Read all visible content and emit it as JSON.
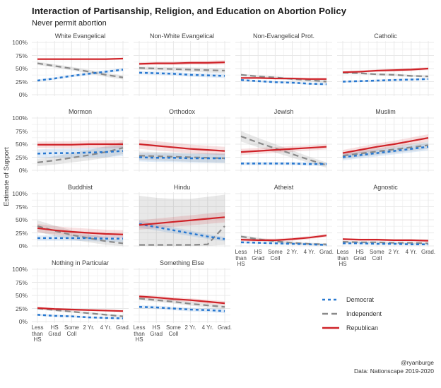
{
  "title": "Interaction of Partisanship, Religion, and Education on Abortion Policy",
  "subtitle": "Never permit abortion",
  "y_axis_label": "Estimate of Support",
  "caption": {
    "line1": "@ryanburge",
    "line2": "Data: Nationscape 2019-2020"
  },
  "legend": {
    "items": [
      {
        "label": "Democrat",
        "color": "#2878d0",
        "style": "dashed-short"
      },
      {
        "label": "Independent",
        "color": "#8a8a8a",
        "style": "dashed-long"
      },
      {
        "label": "Republican",
        "color": "#cf2228",
        "style": "solid"
      }
    ]
  },
  "chart_data": {
    "type": "line",
    "x_axis": "Education",
    "categories": [
      "Less than HS",
      "HS Grad",
      "Some Coll",
      "2 Yr.",
      "4 Yr.",
      "Grad."
    ],
    "x_tick_display": [
      "Less\nthan\nHS",
      "HS\nGrad",
      "Some\nColl",
      "2 Yr.",
      "4 Yr.",
      "Grad."
    ],
    "y_ticks": [
      0,
      25,
      50,
      75,
      100
    ],
    "y_tick_labels": [
      "0%",
      "25%",
      "50%",
      "75%",
      "100%"
    ],
    "ylim": [
      0,
      100
    ],
    "grid": true,
    "legend_position": "bottom-right",
    "facets": [
      {
        "title": "White Evangelical",
        "row": 1,
        "show_x_axis": false,
        "series": [
          {
            "name": "Democrat",
            "values": [
              27,
              31,
              36,
              40,
              44,
              48
            ],
            "ci": [
              2,
              3
            ]
          },
          {
            "name": "Independent",
            "values": [
              60,
              55,
              50,
              44,
              38,
              33
            ],
            "ci": [
              3,
              4
            ]
          },
          {
            "name": "Republican",
            "values": [
              68,
              68,
              68,
              68,
              68,
              69
            ],
            "ci": [
              2,
              2
            ]
          }
        ]
      },
      {
        "title": "Non-White Evangelical",
        "row": 1,
        "show_x_axis": false,
        "series": [
          {
            "name": "Democrat",
            "values": [
              42,
              41,
              40,
              38,
              37,
              36
            ],
            "ci": [
              3,
              4
            ]
          },
          {
            "name": "Independent",
            "values": [
              51,
              50,
              49,
              48,
              47,
              46
            ],
            "ci": [
              3,
              5
            ]
          },
          {
            "name": "Republican",
            "values": [
              59,
              60,
              60,
              61,
              61,
              62
            ],
            "ci": [
              3,
              4
            ]
          }
        ]
      },
      {
        "title": "Non-Evangelical Prot.",
        "row": 1,
        "show_x_axis": false,
        "series": [
          {
            "name": "Democrat",
            "values": [
              28,
              26,
              24,
              23,
              21,
              20
            ],
            "ci": [
              2,
              2
            ]
          },
          {
            "name": "Independent",
            "values": [
              38,
              35,
              33,
              30,
              28,
              25
            ],
            "ci": [
              2,
              3
            ]
          },
          {
            "name": "Republican",
            "values": [
              32,
              32,
              31,
              31,
              30,
              30
            ],
            "ci": [
              2,
              2
            ]
          }
        ]
      },
      {
        "title": "Catholic",
        "row": 1,
        "show_x_axis": false,
        "series": [
          {
            "name": "Democrat",
            "values": [
              25,
              26,
              27,
              28,
              29,
              30
            ],
            "ci": [
              2,
              2
            ]
          },
          {
            "name": "Independent",
            "values": [
              42,
              41,
              39,
              38,
              36,
              35
            ],
            "ci": [
              2,
              2
            ]
          },
          {
            "name": "Republican",
            "values": [
              43,
              44,
              46,
              47,
              48,
              50
            ],
            "ci": [
              2,
              3
            ]
          }
        ]
      },
      {
        "title": "Mormon",
        "row": 2,
        "show_x_axis": false,
        "series": [
          {
            "name": "Democrat",
            "values": [
              32,
              33,
              33,
              34,
              35,
              37
            ],
            "ci": [
              8,
              10
            ]
          },
          {
            "name": "Independent",
            "values": [
              15,
              19,
              24,
              29,
              35,
              43
            ],
            "ci": [
              7,
              12
            ]
          },
          {
            "name": "Republican",
            "values": [
              49,
              49,
              49,
              50,
              50,
              50
            ],
            "ci": [
              6,
              8
            ]
          }
        ]
      },
      {
        "title": "Orthodox",
        "row": 2,
        "show_x_axis": false,
        "series": [
          {
            "name": "Democrat",
            "values": [
              25,
              24,
              24,
              23,
              23,
              23
            ],
            "ci": [
              8,
              9
            ]
          },
          {
            "name": "Independent",
            "values": [
              28,
              27,
              26,
              25,
              24,
              23
            ],
            "ci": [
              8,
              9
            ]
          },
          {
            "name": "Republican",
            "values": [
              50,
              47,
              44,
              41,
              39,
              37
            ],
            "ci": [
              9,
              8
            ]
          }
        ]
      },
      {
        "title": "Jewish",
        "row": 2,
        "show_x_axis": false,
        "series": [
          {
            "name": "Democrat",
            "values": [
              13,
              13,
              13,
              13,
              12,
              12
            ],
            "ci": [
              3,
              3
            ]
          },
          {
            "name": "Independent",
            "values": [
              65,
              53,
              42,
              31,
              20,
              10
            ],
            "ci": [
              10,
              5
            ]
          },
          {
            "name": "Republican",
            "values": [
              35,
              37,
              39,
              41,
              43,
              45
            ],
            "ci": [
              6,
              5
            ]
          }
        ]
      },
      {
        "title": "Muslim",
        "row": 2,
        "show_x_axis": false,
        "series": [
          {
            "name": "Democrat",
            "values": [
              25,
              29,
              33,
              37,
              41,
              45
            ],
            "ci": [
              6,
              7
            ]
          },
          {
            "name": "Independent",
            "values": [
              28,
              32,
              36,
              40,
              44,
              48
            ],
            "ci": [
              6,
              7
            ]
          },
          {
            "name": "Republican",
            "values": [
              33,
              39,
              45,
              50,
              56,
              62
            ],
            "ci": [
              6,
              7
            ]
          }
        ]
      },
      {
        "title": "Buddhist",
        "row": 3,
        "show_x_axis": false,
        "series": [
          {
            "name": "Democrat",
            "values": [
              15,
              15,
              15,
              15,
              14,
              14
            ],
            "ci": [
              5,
              6
            ]
          },
          {
            "name": "Independent",
            "values": [
              38,
              29,
              21,
              15,
              9,
              5
            ],
            "ci": [
              11,
              6
            ]
          },
          {
            "name": "Republican",
            "values": [
              34,
              30,
              27,
              25,
              23,
              22
            ],
            "ci": [
              8,
              8
            ]
          }
        ]
      },
      {
        "title": "Hindu",
        "row": 3,
        "show_x_axis": false,
        "series": [
          {
            "name": "Democrat",
            "values": [
              42,
              36,
              30,
              24,
              18,
              13
            ],
            "ci": [
              7,
              4
            ]
          },
          {
            "name": "Independent",
            "values": [
              2,
              2,
              2,
              2,
              3,
              38
            ],
            "lo": [
              0,
              0,
              0,
              0,
              0,
              2
            ],
            "hi": [
              96,
              92,
              90,
              90,
              94,
              98
            ]
          },
          {
            "name": "Republican",
            "values": [
              40,
              43,
              46,
              49,
              52,
              55
            ],
            "ci": [
              9,
              10
            ]
          }
        ]
      },
      {
        "title": "Atheist",
        "row": 3,
        "show_x_axis": true,
        "series": [
          {
            "name": "Democrat",
            "values": [
              7,
              6,
              5,
              4,
              3,
              2
            ],
            "ci": [
              2,
              2
            ]
          },
          {
            "name": "Independent",
            "values": [
              18,
              13,
              9,
              6,
              4,
              3
            ],
            "ci": [
              3,
              2
            ]
          },
          {
            "name": "Republican",
            "values": [
              12,
              11,
              11,
              13,
              16,
              20
            ],
            "ci": [
              3,
              3
            ]
          }
        ]
      },
      {
        "title": "Agnostic",
        "row": 3,
        "show_x_axis": true,
        "series": [
          {
            "name": "Democrat",
            "values": [
              5,
              5,
              4,
              4,
              3,
              3
            ],
            "ci": [
              2,
              2
            ]
          },
          {
            "name": "Independent",
            "values": [
              8,
              7,
              7,
              6,
              6,
              5
            ],
            "ci": [
              2,
              2
            ]
          },
          {
            "name": "Republican",
            "values": [
              13,
              12,
              12,
              11,
              11,
              10
            ],
            "ci": [
              2,
              2
            ]
          }
        ]
      },
      {
        "title": "Nothing in Particular",
        "row": 4,
        "show_x_axis": true,
        "series": [
          {
            "name": "Democrat",
            "values": [
              13,
              11,
              10,
              8,
              7,
              6
            ],
            "ci": [
              2,
              2
            ]
          },
          {
            "name": "Independent",
            "values": [
              25,
              22,
              19,
              16,
              13,
              10
            ],
            "ci": [
              2,
              2
            ]
          },
          {
            "name": "Republican",
            "values": [
              26,
              24,
              23,
              22,
              21,
              20
            ],
            "ci": [
              2,
              2
            ]
          }
        ]
      },
      {
        "title": "Something Else",
        "row": 4,
        "show_x_axis": true,
        "series": [
          {
            "name": "Democrat",
            "values": [
              28,
              27,
              25,
              23,
              22,
              20
            ],
            "ci": [
              3,
              4
            ]
          },
          {
            "name": "Independent",
            "values": [
              44,
              41,
              38,
              34,
              31,
              28
            ],
            "ci": [
              3,
              4
            ]
          },
          {
            "name": "Republican",
            "values": [
              48,
              46,
              43,
              41,
              38,
              35
            ],
            "ci": [
              3,
              4
            ]
          }
        ]
      }
    ]
  }
}
